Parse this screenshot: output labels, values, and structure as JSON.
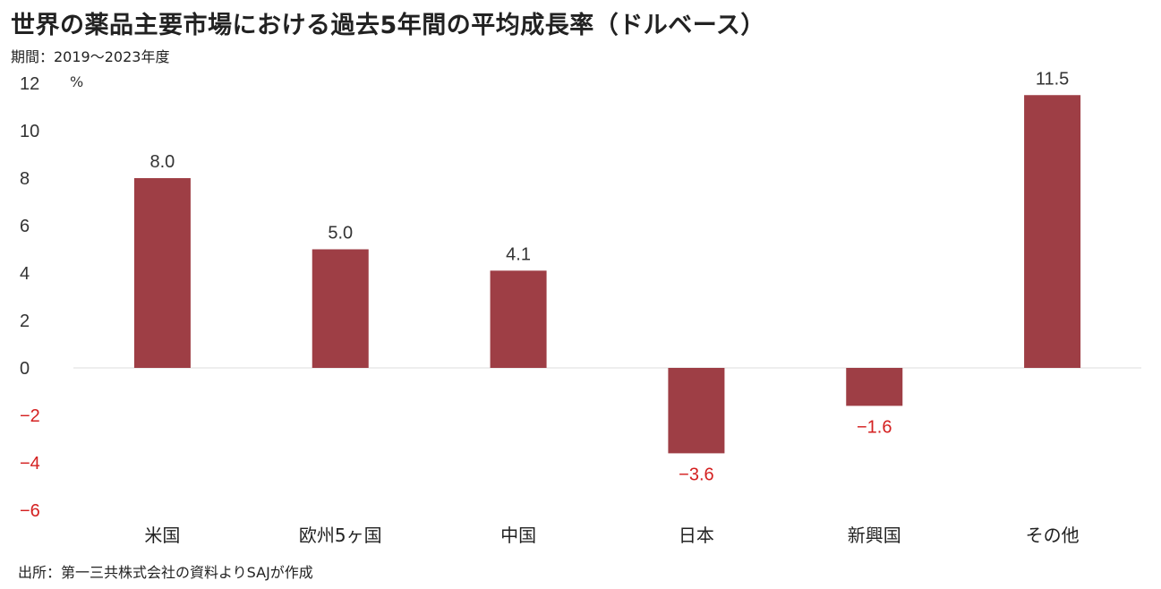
{
  "title": "世界の薬品主要市場における過去5年間の平均成長率（ドルベース）",
  "subtitle": "期間：2019～2023年度",
  "source": "出所：第一三共株式会社の資料よりSAJが作成",
  "colors": {
    "bar": "#9e3e45",
    "negative_text": "#d42020",
    "axis_text": "#333333",
    "zero_line": "#e3e3e3"
  },
  "chart_data": {
    "type": "bar",
    "title": "世界の薬品主要市場における過去5年間の平均成長率（ドルベース）",
    "subtitle": "期間：2019～2023年度",
    "categories": [
      "米国",
      "欧州5ヶ国",
      "中国",
      "日本",
      "新興国",
      "その他"
    ],
    "values": [
      8.0,
      5.0,
      4.1,
      -3.6,
      -1.6,
      11.5
    ],
    "data_labels": [
      "8.0",
      "5.0",
      "4.1",
      "−3.6",
      "−1.6",
      "11.5"
    ],
    "y_unit": "%",
    "ylim": [
      -6,
      12
    ],
    "yticks": [
      12,
      10,
      8,
      6,
      4,
      2,
      0,
      -2,
      -4,
      -6
    ],
    "ytick_labels": [
      "12",
      "10",
      "8",
      "6",
      "4",
      "2",
      "0",
      "−2",
      "−4",
      "−6"
    ],
    "grid": false,
    "legend": "none"
  }
}
